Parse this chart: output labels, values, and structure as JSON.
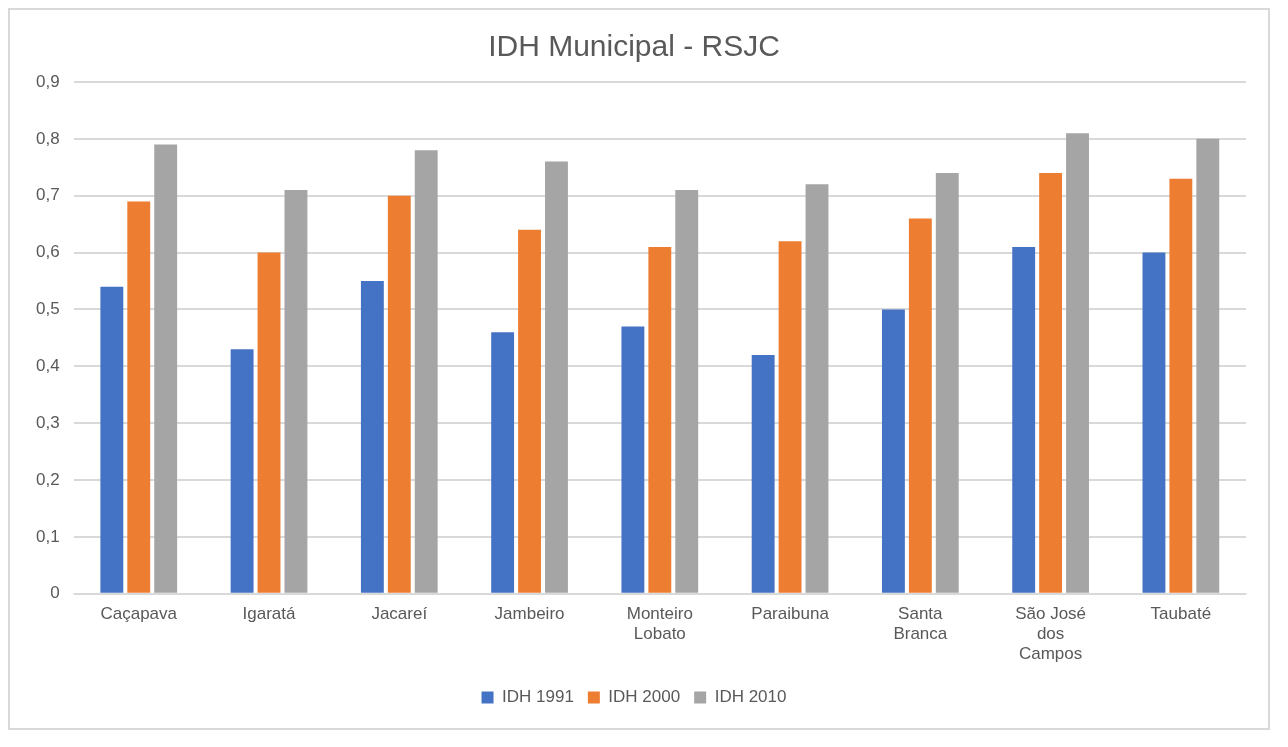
{
  "chart_data": {
    "type": "bar",
    "title": "IDH Municipal - RSJC",
    "categories": [
      "Caçapava",
      "Igaratá",
      "Jacareí",
      "Jambeiro",
      "Monteiro Lobato",
      "Paraibuna",
      "Santa Branca",
      "São José dos Campos",
      "Taubaté"
    ],
    "series": [
      {
        "name": "IDH 1991",
        "color": "#4472c4",
        "values": [
          0.54,
          0.43,
          0.55,
          0.46,
          0.47,
          0.42,
          0.5,
          0.61,
          0.6
        ]
      },
      {
        "name": "IDH 2000",
        "color": "#ed7d31",
        "values": [
          0.69,
          0.6,
          0.7,
          0.64,
          0.61,
          0.62,
          0.66,
          0.74,
          0.73
        ]
      },
      {
        "name": "IDH 2010",
        "color": "#a5a5a5",
        "values": [
          0.79,
          0.71,
          0.78,
          0.76,
          0.71,
          0.72,
          0.74,
          0.81,
          0.8
        ]
      }
    ],
    "ylim": [
      0,
      0.9
    ],
    "yticks": [
      {
        "value": 0,
        "label": "0"
      },
      {
        "value": 0.1,
        "label": "0,1"
      },
      {
        "value": 0.2,
        "label": "0,2"
      },
      {
        "value": 0.3,
        "label": "0,3"
      },
      {
        "value": 0.4,
        "label": "0,4"
      },
      {
        "value": 0.5,
        "label": "0,5"
      },
      {
        "value": 0.6,
        "label": "0,6"
      },
      {
        "value": 0.7,
        "label": "0,7"
      },
      {
        "value": 0.8,
        "label": "0,8"
      },
      {
        "value": 0.9,
        "label": "0,9"
      }
    ],
    "grid": "y",
    "legend": "bottom"
  }
}
